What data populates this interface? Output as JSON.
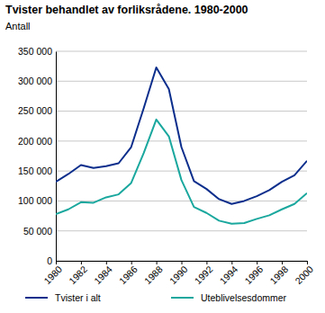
{
  "chart_data": {
    "type": "line",
    "title": "Tvister behandlet av forliksrådene. 1980-2000",
    "y_label": "Antall",
    "x": [
      1980,
      1981,
      1982,
      1983,
      1984,
      1985,
      1986,
      1987,
      1988,
      1989,
      1990,
      1991,
      1992,
      1993,
      1994,
      1995,
      1996,
      1997,
      1998,
      1999,
      2000
    ],
    "series": [
      {
        "name": "Tvister i alt",
        "color": "#0b2e8c",
        "values": [
          132000,
          145000,
          160000,
          155000,
          158000,
          163000,
          190000,
          255000,
          323000,
          287000,
          190000,
          133000,
          120000,
          103000,
          95000,
          100000,
          108000,
          118000,
          132000,
          143000,
          167000
        ]
      },
      {
        "name": "Uteblivelsesdommer",
        "color": "#1aa89e",
        "values": [
          78000,
          86000,
          98000,
          97000,
          106000,
          111000,
          130000,
          180000,
          236000,
          208000,
          135000,
          90000,
          80000,
          67000,
          62000,
          63000,
          70000,
          76000,
          86000,
          95000,
          113000
        ]
      }
    ],
    "xlim": [
      1980,
      2000
    ],
    "xticks": [
      1980,
      1982,
      1984,
      1986,
      1988,
      1990,
      1992,
      1994,
      1996,
      1998,
      2000
    ],
    "ylim": [
      0,
      350000
    ],
    "yticks": [
      0,
      {
        "value": 50000,
        "label": "50 000"
      },
      {
        "value": 100000,
        "label": "100 000"
      },
      {
        "value": 150000,
        "label": "150 000"
      },
      {
        "value": 200000,
        "label": "200 000"
      },
      {
        "value": 250000,
        "label": "250 000"
      },
      {
        "value": 300000,
        "label": "300 000"
      },
      {
        "value": 350000,
        "label": "350 000"
      }
    ],
    "grid": true,
    "legend": "bottom"
  }
}
